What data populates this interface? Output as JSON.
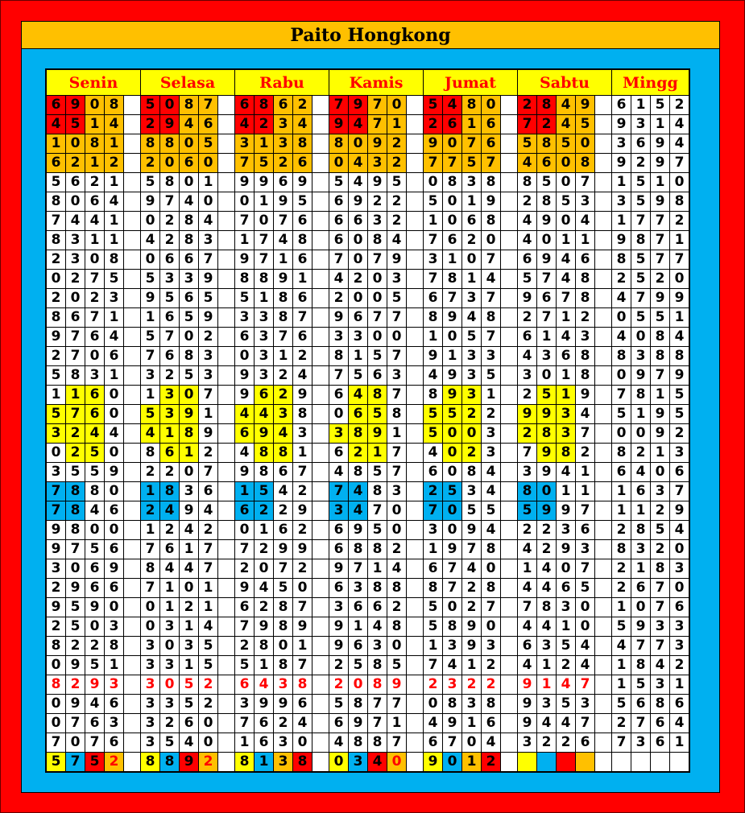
{
  "title": "Paito Hongkong",
  "days": [
    "Senin",
    "Selasa",
    "Rabu",
    "Kamis",
    "Jumat",
    "Sabtu",
    "Mingg"
  ],
  "colors": {
    "red": "#ff0000",
    "orange": "#ffc000",
    "yellow": "#ffff00",
    "blue": "#00b0f0"
  },
  "rows": [
    [
      "6908",
      "5087",
      "6862",
      "7970",
      "5480",
      "2849",
      "6152"
    ],
    [
      "4514",
      "2946",
      "4234",
      "9471",
      "2616",
      "7245",
      "9314"
    ],
    [
      "1081",
      "8805",
      "3138",
      "8092",
      "9076",
      "5850",
      "3694"
    ],
    [
      "6212",
      "2060",
      "7526",
      "0432",
      "7757",
      "4608",
      "9297"
    ],
    [
      "5621",
      "5801",
      "9969",
      "5495",
      "0838",
      "8507",
      "1510"
    ],
    [
      "8064",
      "9740",
      "0195",
      "6922",
      "5019",
      "2853",
      "3598"
    ],
    [
      "7441",
      "0284",
      "7076",
      "6632",
      "1068",
      "4904",
      "1772"
    ],
    [
      "8311",
      "4283",
      "1748",
      "6084",
      "7620",
      "4011",
      "9871"
    ],
    [
      "2308",
      "0667",
      "9716",
      "7079",
      "3107",
      "6946",
      "8577"
    ],
    [
      "0275",
      "5339",
      "8891",
      "4203",
      "7814",
      "5748",
      "2520"
    ],
    [
      "2023",
      "9565",
      "5186",
      "2005",
      "6737",
      "9678",
      "4799"
    ],
    [
      "8671",
      "1659",
      "3387",
      "9677",
      "8948",
      "2712",
      "0551"
    ],
    [
      "9764",
      "5702",
      "6376",
      "3300",
      "1057",
      "6143",
      "4084"
    ],
    [
      "2706",
      "7683",
      "0312",
      "8157",
      "9133",
      "4368",
      "8388"
    ],
    [
      "5831",
      "3253",
      "9324",
      "7563",
      "4935",
      "3018",
      "0979"
    ],
    [
      "1160",
      "1307",
      "9629",
      "6487",
      "8931",
      "2519",
      "7815"
    ],
    [
      "5760",
      "5391",
      "4438",
      "0658",
      "5522",
      "9934",
      "5195"
    ],
    [
      "3244",
      "4189",
      "6943",
      "3891",
      "5003",
      "2837",
      "0092"
    ],
    [
      "0250",
      "8612",
      "4881",
      "6217",
      "4023",
      "7982",
      "8213"
    ],
    [
      "3559",
      "2207",
      "9867",
      "4857",
      "6084",
      "3941",
      "6406"
    ],
    [
      "7880",
      "1836",
      "1542",
      "7483",
      "2534",
      "8011",
      "1637"
    ],
    [
      "7846",
      "2494",
      "6229",
      "3470",
      "7055",
      "5997",
      "1129"
    ],
    [
      "9800",
      "1242",
      "0162",
      "6950",
      "3094",
      "2236",
      "2854"
    ],
    [
      "9756",
      "7617",
      "7299",
      "6882",
      "1978",
      "4293",
      "8320"
    ],
    [
      "3069",
      "8447",
      "2072",
      "9714",
      "6740",
      "1407",
      "2183"
    ],
    [
      "2966",
      "7101",
      "9450",
      "6388",
      "8728",
      "4465",
      "2670"
    ],
    [
      "9590",
      "0121",
      "6287",
      "3662",
      "5027",
      "7830",
      "1076"
    ],
    [
      "2503",
      "0314",
      "7989",
      "9148",
      "5890",
      "4410",
      "5933"
    ],
    [
      "8228",
      "3035",
      "2801",
      "9630",
      "1393",
      "6354",
      "4773"
    ],
    [
      "0951",
      "3315",
      "5187",
      "2585",
      "7412",
      "4124",
      "1842"
    ],
    [
      "8293",
      "3052",
      "6438",
      "2089",
      "2322",
      "9147",
      "1531"
    ],
    [
      "0946",
      "3352",
      "3996",
      "5877",
      "0838",
      "9353",
      "5686"
    ],
    [
      "0763",
      "3260",
      "7624",
      "6971",
      "4916",
      "9447",
      "2764"
    ],
    [
      "7076",
      "3540",
      "1630",
      "4887",
      "6704",
      "3226",
      "7361"
    ],
    [
      "5752",
      "8892",
      "8138",
      "0340",
      "9012",
      "",
      ""
    ]
  ],
  "cell_styles": [
    [
      "RROO",
      "RROO",
      "RROO",
      "RROO",
      "RROO",
      "RROO",
      "...."
    ],
    [
      "RROO",
      "RROO",
      "RROO",
      "RROO",
      "RROO",
      "RROO",
      "...."
    ],
    [
      "OOOO",
      "OOOO",
      "OOOO",
      "OOOO",
      "OOOO",
      "OOOO",
      "...."
    ],
    [
      "OOOO",
      "OOOO",
      "OOOO",
      "OOOO",
      "OOOO",
      "OOOO",
      "...."
    ],
    [
      "....",
      "....",
      "....",
      "....",
      "....",
      "....",
      "...."
    ],
    [
      "....",
      "....",
      "....",
      "....",
      "....",
      "....",
      "...."
    ],
    [
      "....",
      "....",
      "....",
      "....",
      "....",
      "....",
      "...."
    ],
    [
      "....",
      "....",
      "....",
      "....",
      "....",
      "....",
      "...."
    ],
    [
      "....",
      "....",
      "....",
      "....",
      "....",
      "....",
      "...."
    ],
    [
      "....",
      "....",
      "....",
      "....",
      "....",
      "....",
      "...."
    ],
    [
      "....",
      "....",
      "....",
      "....",
      "....",
      "....",
      "...."
    ],
    [
      "....",
      "....",
      "....",
      "....",
      "....",
      "....",
      "...."
    ],
    [
      "....",
      "....",
      "....",
      "....",
      "....",
      "....",
      "...."
    ],
    [
      "....",
      "....",
      "....",
      "....",
      "....",
      "....",
      "...."
    ],
    [
      "....",
      "....",
      "....",
      "....",
      "....",
      "....",
      "...."
    ],
    [
      ".YY.",
      ".YY.",
      ".YY.",
      ".YY.",
      ".YY.",
      ".YY.",
      "...."
    ],
    [
      "YYY.",
      "YYY.",
      "YYY.",
      ".YY.",
      "YYY.",
      "YYY.",
      "...."
    ],
    [
      "YYY.",
      "YYY.",
      "YYY.",
      "YYY.",
      "YYY.",
      "YYY.",
      "...."
    ],
    [
      ".YY.",
      ".YY.",
      ".YY.",
      ".YY.",
      ".YY.",
      ".YY.",
      "...."
    ],
    [
      "....",
      "....",
      "....",
      "....",
      "....",
      "....",
      "...."
    ],
    [
      "BB..",
      "BB..",
      "BB..",
      "BB..",
      "BB..",
      "BB..",
      "...."
    ],
    [
      "BB..",
      "BB..",
      "BB..",
      "BB..",
      "BB..",
      "BB..",
      "...."
    ],
    [
      "....",
      "....",
      "....",
      "....",
      "....",
      "....",
      "...."
    ],
    [
      "....",
      "....",
      "....",
      "....",
      "....",
      "....",
      "...."
    ],
    [
      "....",
      "....",
      "....",
      "....",
      "....",
      "....",
      "...."
    ],
    [
      "....",
      "....",
      "....",
      "....",
      "....",
      "....",
      "...."
    ],
    [
      "....",
      "....",
      "....",
      "....",
      "....",
      "....",
      "...."
    ],
    [
      "....",
      "....",
      "....",
      "....",
      "....",
      "....",
      "...."
    ],
    [
      "....",
      "....",
      "....",
      "....",
      "....",
      "....",
      "...."
    ],
    [
      "....",
      "....",
      "....",
      "....",
      "....",
      "....",
      "...."
    ],
    [
      "rrrr",
      "rrrr",
      "rrrr",
      "rrrr",
      "rrrr",
      "rrrr",
      "...."
    ],
    [
      "....",
      "....",
      "....",
      "....",
      "....",
      "....",
      "...."
    ],
    [
      "....",
      "....",
      "....",
      "....",
      "....",
      "....",
      "...."
    ],
    [
      "....",
      "....",
      "....",
      "....",
      "....",
      "....",
      "...."
    ],
    [
      "YBRo",
      "YBRo",
      "YBOR",
      "YBRo",
      "YBOR",
      "YBRO",
      "...."
    ]
  ]
}
